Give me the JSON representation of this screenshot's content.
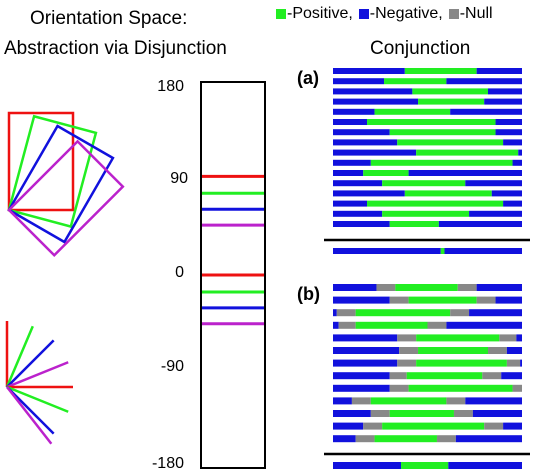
{
  "titles": {
    "orientation_space": "Orientation Space:",
    "disjunction": "Abstraction via Disjunction",
    "conjunction": "Conjunction"
  },
  "legend": [
    {
      "label": "-Positive,",
      "color": "#22ee22"
    },
    {
      "label": "-Negative,",
      "color": "#1111dd"
    },
    {
      "label": "-Null",
      "color": "#888888"
    }
  ],
  "axis": {
    "ticks": [
      "180",
      "90",
      "0",
      "-90",
      "-180"
    ],
    "range": [
      -180,
      180
    ]
  },
  "orientation_marks": [
    {
      "value": 93,
      "color": "#ee1111"
    },
    {
      "value": 77,
      "color": "#22ee22"
    },
    {
      "value": 62,
      "color": "#1111dd"
    },
    {
      "value": 47,
      "color": "#bb22cc"
    },
    {
      "value": 0,
      "color": "#ee1111"
    },
    {
      "value": -16,
      "color": "#22ee22"
    },
    {
      "value": -31,
      "color": "#1111dd"
    },
    {
      "value": -46,
      "color": "#bb22cc"
    }
  ],
  "rect_angles_deg": [
    0,
    15,
    30,
    45
  ],
  "line_angles_deg": [
    90,
    67,
    45,
    22,
    0,
    -22,
    -45
  ],
  "colors": {
    "red": "#ee1111",
    "green": "#22ee22",
    "blue": "#1111dd",
    "magenta": "#bb22cc",
    "gray": "#888888",
    "black": "#000000"
  },
  "panels": {
    "a": {
      "label": "(a)",
      "rows": [
        [
          [
            0,
            0.38,
            "n"
          ],
          [
            0.38,
            0.76,
            "p"
          ],
          [
            0.76,
            1,
            "n"
          ]
        ],
        [
          [
            0,
            0.27,
            "n"
          ],
          [
            0.27,
            0.6,
            "p"
          ],
          [
            0.6,
            1,
            "n"
          ]
        ],
        [
          [
            0,
            0.42,
            "n"
          ],
          [
            0.42,
            0.82,
            "p"
          ],
          [
            0.82,
            1,
            "n"
          ]
        ],
        [
          [
            0,
            0.45,
            "n"
          ],
          [
            0.45,
            0.8,
            "p"
          ],
          [
            0.8,
            1,
            "n"
          ]
        ],
        [
          [
            0,
            0.22,
            "n"
          ],
          [
            0.22,
            0.62,
            "p"
          ],
          [
            0.62,
            1,
            "n"
          ]
        ],
        [
          [
            0,
            0.18,
            "n"
          ],
          [
            0.18,
            0.86,
            "p"
          ],
          [
            0.86,
            1,
            "n"
          ]
        ],
        [
          [
            0,
            0.3,
            "n"
          ],
          [
            0.3,
            0.86,
            "p"
          ],
          [
            0.86,
            1,
            "n"
          ]
        ],
        [
          [
            0,
            0.34,
            "n"
          ],
          [
            0.34,
            0.9,
            "p"
          ],
          [
            0.9,
            1,
            "n"
          ]
        ],
        [
          [
            0,
            0.44,
            "n"
          ],
          [
            0.44,
            0.98,
            "p"
          ],
          [
            0.98,
            1,
            "n"
          ]
        ],
        [
          [
            0,
            0.2,
            "n"
          ],
          [
            0.2,
            0.95,
            "p"
          ],
          [
            0.95,
            1,
            "n"
          ]
        ],
        [
          [
            0,
            0.16,
            "n"
          ],
          [
            0.16,
            0.4,
            "p"
          ],
          [
            0.4,
            1,
            "n"
          ]
        ],
        [
          [
            0,
            0.26,
            "n"
          ],
          [
            0.26,
            0.7,
            "p"
          ],
          [
            0.7,
            1,
            "n"
          ]
        ],
        [
          [
            0,
            0.38,
            "n"
          ],
          [
            0.38,
            0.84,
            "p"
          ],
          [
            0.84,
            1,
            "n"
          ]
        ],
        [
          [
            0,
            0.18,
            "n"
          ],
          [
            0.18,
            0.9,
            "p"
          ],
          [
            0.9,
            1,
            "n"
          ]
        ],
        [
          [
            0,
            0.26,
            "n"
          ],
          [
            0.26,
            0.72,
            "p"
          ],
          [
            0.72,
            1,
            "n"
          ]
        ],
        [
          [
            0,
            0.3,
            "n"
          ],
          [
            0.3,
            0.56,
            "p"
          ],
          [
            0.56,
            1,
            "n"
          ]
        ]
      ],
      "result": [
        [
          0,
          0.57,
          "n"
        ],
        [
          0.57,
          0.59,
          "p"
        ],
        [
          0.59,
          1,
          "n"
        ]
      ]
    },
    "b": {
      "label": "(b)",
      "rows": [
        [
          [
            0,
            0.23,
            "n"
          ],
          [
            0.23,
            0.33,
            "g"
          ],
          [
            0.33,
            0.66,
            "p"
          ],
          [
            0.66,
            0.76,
            "g"
          ],
          [
            0.76,
            1,
            "n"
          ]
        ],
        [
          [
            0,
            0.3,
            "n"
          ],
          [
            0.3,
            0.4,
            "g"
          ],
          [
            0.4,
            0.76,
            "p"
          ],
          [
            0.76,
            0.86,
            "g"
          ],
          [
            0.86,
            1,
            "n"
          ]
        ],
        [
          [
            0,
            0.02,
            "n"
          ],
          [
            0.02,
            0.12,
            "g"
          ],
          [
            0.12,
            0.62,
            "p"
          ],
          [
            0.62,
            0.72,
            "g"
          ],
          [
            0.72,
            1,
            "n"
          ]
        ],
        [
          [
            0,
            0.03,
            "n"
          ],
          [
            0.03,
            0.12,
            "g"
          ],
          [
            0.12,
            0.5,
            "p"
          ],
          [
            0.5,
            0.6,
            "g"
          ],
          [
            0.6,
            1,
            "n"
          ]
        ],
        [
          [
            0,
            0.34,
            "n"
          ],
          [
            0.34,
            0.44,
            "g"
          ],
          [
            0.44,
            0.88,
            "p"
          ],
          [
            0.88,
            0.97,
            "g"
          ],
          [
            0.97,
            1,
            "n"
          ]
        ],
        [
          [
            0,
            0.35,
            "n"
          ],
          [
            0.35,
            0.45,
            "g"
          ],
          [
            0.45,
            0.82,
            "p"
          ],
          [
            0.82,
            0.92,
            "g"
          ],
          [
            0.92,
            1,
            "n"
          ]
        ],
        [
          [
            0,
            0.34,
            "n"
          ],
          [
            0.34,
            0.44,
            "g"
          ],
          [
            0.44,
            0.92,
            "p"
          ],
          [
            0.92,
            0.99,
            "g"
          ],
          [
            0.99,
            1,
            "n"
          ]
        ],
        [
          [
            0,
            0.3,
            "n"
          ],
          [
            0.3,
            0.39,
            "g"
          ],
          [
            0.39,
            0.79,
            "p"
          ],
          [
            0.79,
            0.89,
            "g"
          ],
          [
            0.89,
            1,
            "n"
          ]
        ],
        [
          [
            0,
            0.3,
            "n"
          ],
          [
            0.3,
            0.4,
            "g"
          ],
          [
            0.4,
            0.95,
            "p"
          ],
          [
            0.95,
            1,
            "g"
          ]
        ],
        [
          [
            0,
            0.1,
            "n"
          ],
          [
            0.1,
            0.2,
            "g"
          ],
          [
            0.2,
            0.6,
            "p"
          ],
          [
            0.6,
            0.7,
            "g"
          ],
          [
            0.7,
            1,
            "n"
          ]
        ],
        [
          [
            0,
            0.2,
            "n"
          ],
          [
            0.2,
            0.3,
            "g"
          ],
          [
            0.3,
            0.64,
            "p"
          ],
          [
            0.64,
            0.74,
            "g"
          ],
          [
            0.74,
            1,
            "n"
          ]
        ],
        [
          [
            0,
            0.16,
            "n"
          ],
          [
            0.16,
            0.26,
            "g"
          ],
          [
            0.26,
            0.8,
            "p"
          ],
          [
            0.8,
            0.9,
            "g"
          ],
          [
            0.9,
            1,
            "n"
          ]
        ],
        [
          [
            0,
            0.12,
            "n"
          ],
          [
            0.12,
            0.22,
            "g"
          ],
          [
            0.22,
            0.55,
            "p"
          ],
          [
            0.55,
            0.65,
            "g"
          ],
          [
            0.65,
            1,
            "n"
          ]
        ]
      ],
      "result": [
        [
          0,
          0.36,
          "n"
        ],
        [
          0.36,
          0.61,
          "p"
        ],
        [
          0.61,
          1,
          "n"
        ]
      ]
    }
  }
}
